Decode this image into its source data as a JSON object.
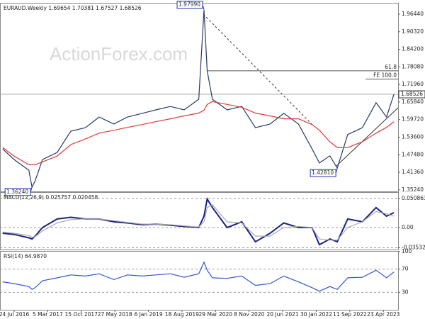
{
  "chart_data": [
    {
      "type": "line",
      "title": "EURAUD.Weekly 1.69654 1.70381 1.67527 1.68526",
      "watermark": "ActionForex.com",
      "x": [
        -11,
        0,
        14,
        17,
        20,
        27,
        41,
        54,
        68,
        81,
        95,
        108,
        122,
        135,
        149,
        162,
        176,
        181,
        184,
        189,
        203,
        217,
        230,
        244,
        257,
        271,
        284,
        291,
        301,
        308,
        318,
        332,
        345,
        355,
        362
      ],
      "series": [
        {
          "color": "#2b3a67",
          "values": [
            1.495,
            1.458,
            1.421,
            1.362,
            1.384,
            1.458,
            1.483,
            1.557,
            1.569,
            1.606,
            1.582,
            1.606,
            1.619,
            1.631,
            1.643,
            1.631,
            1.668,
            1.979,
            1.767,
            1.668,
            1.631,
            1.643,
            1.569,
            1.582,
            1.619,
            1.582,
            1.495,
            1.446,
            1.471,
            1.428,
            1.545,
            1.569,
            1.656,
            1.606,
            1.685
          ]
        },
        {
          "color": "#e03a3a",
          "values": [
            1.5,
            1.47,
            1.44,
            1.44,
            1.44,
            1.45,
            1.47,
            1.51,
            1.53,
            1.55,
            1.56,
            1.57,
            1.58,
            1.59,
            1.6,
            1.61,
            1.62,
            1.63,
            1.65,
            1.66,
            1.65,
            1.64,
            1.62,
            1.61,
            1.6,
            1.6,
            1.58,
            1.56,
            1.52,
            1.5,
            1.5,
            1.52,
            1.55,
            1.57,
            1.59
          ]
        }
      ],
      "ylim": [
        1.3471,
        2.0014
      ],
      "yticks": [
        {
          "value": 1.9644,
          "label": "1.96440"
        },
        {
          "value": 1.9032,
          "label": "1.90320"
        },
        {
          "value": 1.842,
          "label": "1.84200"
        },
        {
          "value": 1.7808,
          "label": "1.78080"
        },
        {
          "value": 1.7196,
          "label": "1.71960"
        },
        {
          "value": 1.6584,
          "label": "1.65840"
        },
        {
          "value": 1.5972,
          "label": "1.59720"
        },
        {
          "value": 1.536,
          "label": "1.53600"
        },
        {
          "value": 1.4748,
          "label": "1.47480"
        },
        {
          "value": 1.4136,
          "label": "1.41360"
        },
        {
          "value": 1.3524,
          "label": "1.35240"
        }
      ],
      "price_labels": [
        {
          "value": 1.9799,
          "label": "1.97990",
          "x": 181
        },
        {
          "value": 1.4281,
          "label": "1.42810",
          "x": 308
        },
        {
          "value": 1.3624,
          "label": "1.36240",
          "x": 17
        }
      ],
      "levels": [
        {
          "value": 1.767,
          "label": "61.8",
          "x": 184
        },
        {
          "value": 1.738,
          "label": "FE 100.0",
          "x": 335
        }
      ],
      "last_price": 1.68526
    },
    {
      "type": "line",
      "title": "MACD(12,26,9) 0.025757 0.020458",
      "x": [
        -11,
        0,
        14,
        17,
        20,
        27,
        41,
        54,
        68,
        81,
        95,
        108,
        122,
        135,
        149,
        162,
        176,
        181,
        184,
        189,
        203,
        217,
        230,
        244,
        257,
        271,
        284,
        291,
        301,
        308,
        318,
        332,
        345,
        355,
        362
      ],
      "series": [
        {
          "color": "#1a237e",
          "values": [
            -0.01,
            -0.012,
            -0.018,
            -0.02,
            -0.015,
            0.0,
            0.015,
            0.018,
            0.015,
            0.015,
            0.01,
            0.008,
            0.005,
            0.006,
            0.004,
            0.002,
            0.0,
            0.02,
            0.05,
            0.035,
            0.0,
            0.01,
            -0.025,
            -0.01,
            0.008,
            0.0,
            0.0,
            -0.03,
            -0.02,
            -0.025,
            0.015,
            0.01,
            0.035,
            0.02,
            0.026
          ]
        },
        {
          "color": "#aaaaaa",
          "values": [
            -0.008,
            -0.01,
            -0.014,
            -0.017,
            -0.016,
            -0.006,
            0.008,
            0.014,
            0.015,
            0.015,
            0.012,
            0.009,
            0.006,
            0.006,
            0.005,
            0.003,
            0.001,
            0.01,
            0.035,
            0.04,
            0.01,
            0.008,
            -0.015,
            -0.015,
            0.0,
            0.002,
            0.0,
            -0.02,
            -0.022,
            -0.022,
            0.0,
            0.01,
            0.028,
            0.024,
            0.02
          ]
        }
      ],
      "ylim": [
        -0.0385,
        0.0608
      ],
      "yticks": [
        0.050863,
        {
          "value": 0,
          "label": "0.00"
        },
        -0.035322
      ]
    },
    {
      "type": "line",
      "title": "RSI(14) 64.9870",
      "x": [
        -11,
        0,
        14,
        17,
        20,
        27,
        41,
        54,
        68,
        81,
        95,
        108,
        122,
        135,
        149,
        162,
        176,
        181,
        184,
        189,
        203,
        217,
        230,
        244,
        257,
        271,
        284,
        291,
        301,
        308,
        318,
        332,
        345,
        355,
        362
      ],
      "series": [
        {
          "color": "#3355cc",
          "values": [
            48,
            45,
            40,
            35,
            38,
            50,
            55,
            60,
            58,
            62,
            52,
            60,
            58,
            60,
            62,
            56,
            62,
            82,
            68,
            55,
            54,
            58,
            42,
            45,
            58,
            48,
            38,
            32,
            40,
            35,
            55,
            56,
            68,
            55,
            65
          ]
        }
      ],
      "ylim": [
        0,
        100
      ],
      "yticks": [
        100,
        70,
        30
      ],
      "xlim": [
        -13.5,
        366
      ],
      "xticks": [
        {
          "value": 0,
          "label": "24 Jul 2016"
        },
        {
          "value": 32,
          "label": "5 Mar 2017"
        },
        {
          "value": 64,
          "label": "15 Oct 2017"
        },
        {
          "value": 96,
          "label": "27 May 2018"
        },
        {
          "value": 128,
          "label": "6 Jan 2019"
        },
        {
          "value": 160,
          "label": "18 Aug 2019"
        },
        {
          "value": 192,
          "label": "29 Mar 2020"
        },
        {
          "value": 224,
          "label": "8 Nov 2020"
        },
        {
          "value": 256,
          "label": "20 Jun 2021"
        },
        {
          "value": 288,
          "label": "30 Jan 2022"
        },
        {
          "value": 320,
          "label": "11 Sep 2022"
        },
        {
          "value": 352,
          "label": "23 Apr 2023"
        }
      ]
    }
  ]
}
